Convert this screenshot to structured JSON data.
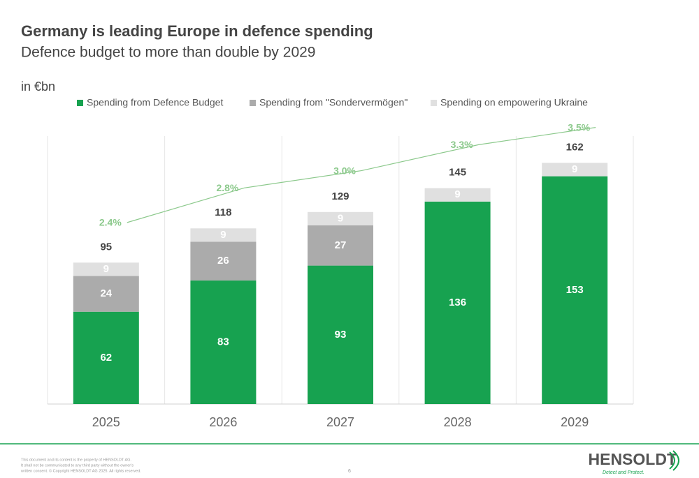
{
  "chart_data": {
    "type": "stacked_bar",
    "title": "Germany is leading Europe in defence spending",
    "subtitle": "Defence budget to more than double by 2029",
    "unit_label": "in €bn",
    "categories": [
      "2025",
      "2026",
      "2027",
      "2028",
      "2029"
    ],
    "series": [
      {
        "name": "Spending from Defence Budget",
        "color": "#17a250",
        "values": [
          62,
          83,
          93,
          136,
          153
        ]
      },
      {
        "name": "Spending from \"Sondervermögen\"",
        "color": "#ababab",
        "values": [
          24,
          26,
          27,
          null,
          null
        ]
      },
      {
        "name": "Spending on empowering Ukraine",
        "color": "#e0e0e0",
        "values": [
          9,
          9,
          9,
          9,
          9
        ]
      }
    ],
    "totals": [
      95,
      118,
      129,
      145,
      162
    ],
    "share_line": {
      "color": "#8cc98c",
      "axis": "y2",
      "values": [
        2.4,
        2.8,
        3.0,
        3.3,
        3.5
      ],
      "value_labels": [
        "2.4%",
        "2.8%",
        "3.0%",
        "3.3%",
        "3.5%"
      ]
    },
    "ylim": [
      0,
      180
    ],
    "y2lim": [
      0.3,
      3.4
    ]
  },
  "footer": {
    "disclaimer": [
      "This document and its content is the property of HENSOLDT AG.",
      "It shall not be communicated to any third party without the owner's",
      "written consent. © Copyright HENSOLDT AG 2025. All rights reserved."
    ],
    "page": "6",
    "logo": "HENSOLDT",
    "tagline": "Detect and Protect."
  }
}
